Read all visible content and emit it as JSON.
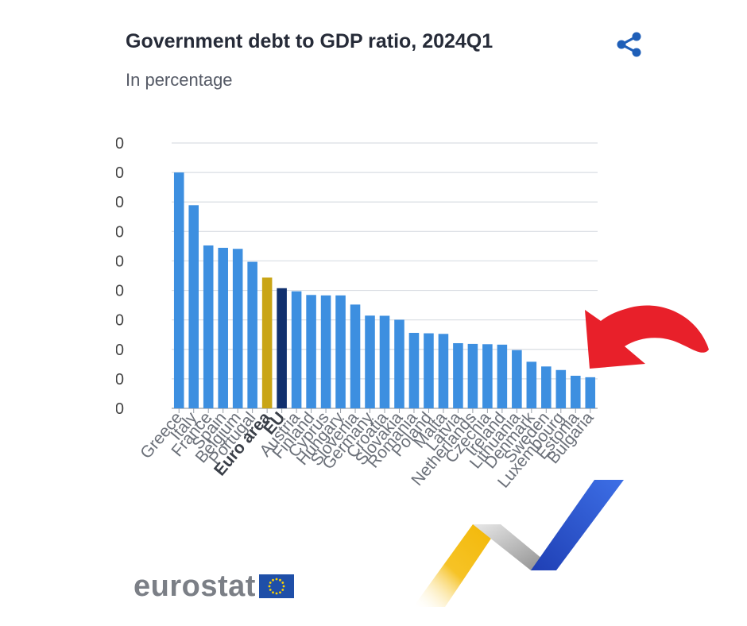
{
  "header": {
    "title": "Government debt to GDP ratio, 2024Q1",
    "subtitle": "In percentage"
  },
  "logo": {
    "text": "eurostat"
  },
  "colors": {
    "bar": "#3d8fe0",
    "euro_area": "#c9a516",
    "eu": "#11306e",
    "grid": "#d9dde3",
    "arrow": "#e8202a",
    "share_icon": "#1f5fb8"
  },
  "icons": {
    "share": "share-icon",
    "arrow": "curved-arrow-icon"
  },
  "chart_data": {
    "type": "bar",
    "title": "Government debt to GDP ratio, 2024Q1",
    "subtitle": "In percentage",
    "ylim": [
      0,
      180
    ],
    "grid": true,
    "categories": [
      "Greece",
      "Italy",
      "France",
      "Spain",
      "Belgium",
      "Portugal",
      "Euro area",
      "EU",
      "Austria",
      "Finland",
      "Cyprus",
      "Hungary",
      "Slovenia",
      "Germany",
      "Croatia",
      "Slovakia",
      "Romania",
      "Poland",
      "Malta",
      "Latvia",
      "Netherlands",
      "Czechia",
      "Ireland",
      "Lithuania",
      "Denmark",
      "Sweden",
      "Luxembourg",
      "Estonia",
      "Bulgaria"
    ],
    "values": [
      160,
      137.8,
      110.5,
      108.9,
      108.2,
      99.4,
      88.7,
      81.5,
      79.4,
      76.9,
      76.6,
      76.6,
      70.4,
      62.9,
      62.8,
      60.1,
      51.2,
      50.9,
      50.5,
      44.2,
      43.7,
      43.5,
      43.2,
      39.5,
      31.6,
      28.4,
      26.0,
      22.1,
      21.1
    ],
    "highlight": {
      "Euro area": "euro_area",
      "EU": "eu"
    },
    "bold_categories": [
      "Euro area",
      "EU"
    ]
  }
}
